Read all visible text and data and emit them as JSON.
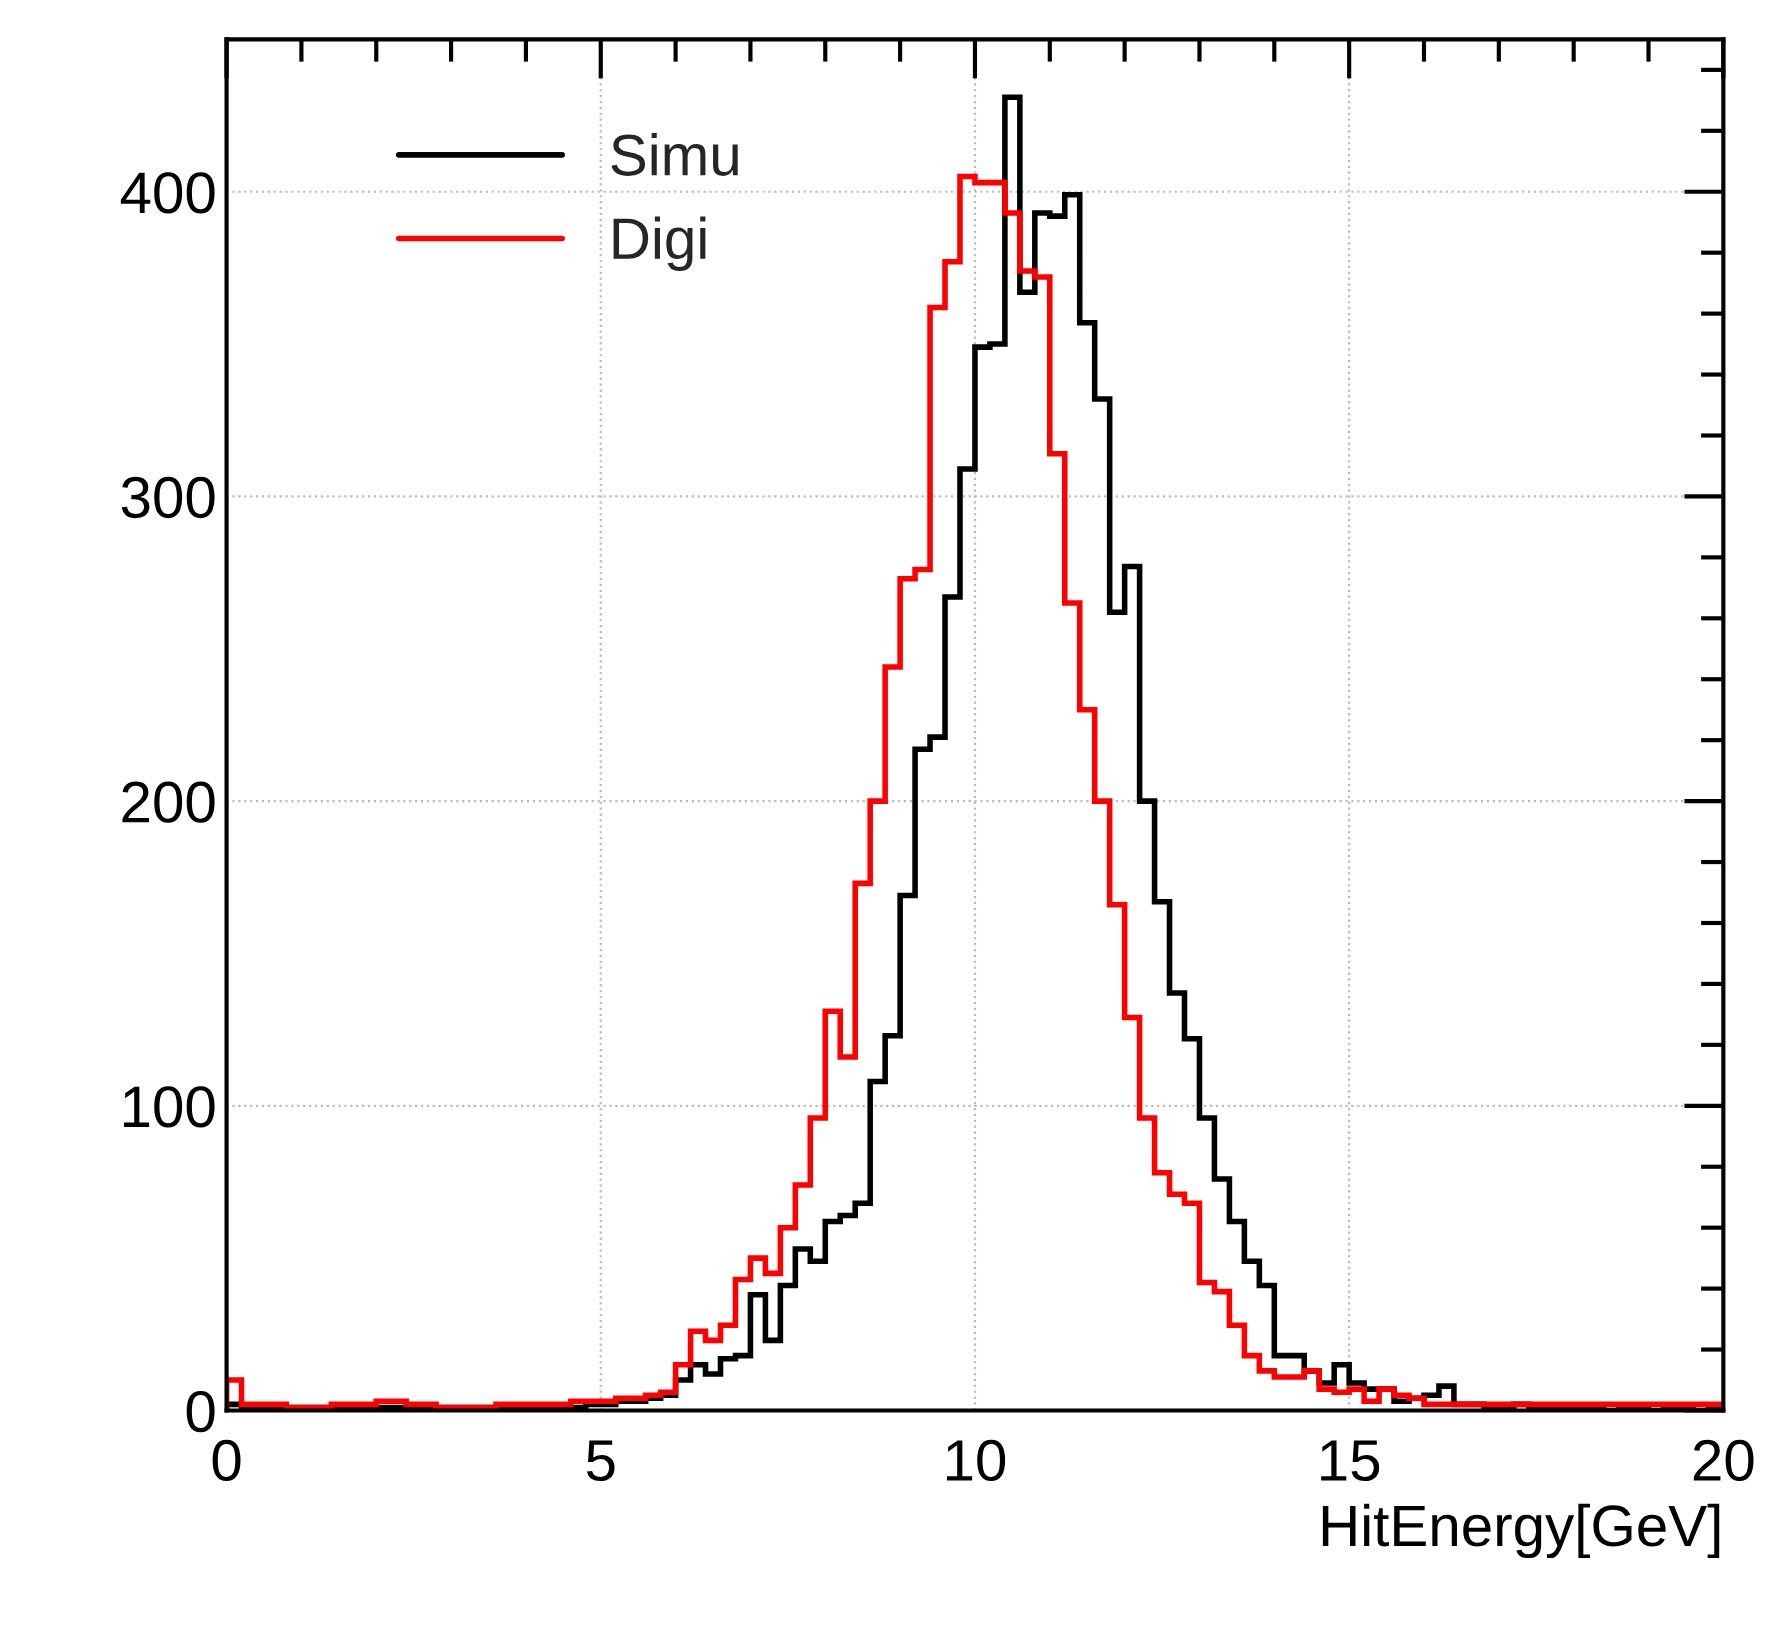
{
  "chart_data": {
    "type": "histogram",
    "xlabel": "HitEnergy[GeV]",
    "bins": [
      0,
      0.2,
      0.4,
      0.6,
      0.8,
      1,
      1.2,
      1.4,
      1.6,
      1.8,
      2,
      2.2,
      2.4,
      2.6,
      2.8,
      3,
      3.2,
      3.4,
      3.6,
      3.8,
      4,
      4.2,
      4.4,
      4.6,
      4.8,
      5,
      5.2,
      5.4,
      5.6,
      5.8,
      6,
      6.2,
      6.4,
      6.6,
      6.8,
      7,
      7.2,
      7.4,
      7.6,
      7.8,
      8,
      8.2,
      8.4,
      8.6,
      8.8,
      9,
      9.2,
      9.4,
      9.6,
      9.8,
      10,
      10.2,
      10.4,
      10.6,
      10.8,
      11,
      11.2,
      11.4,
      11.6,
      11.8,
      12,
      12.2,
      12.4,
      12.6,
      12.8,
      13,
      13.2,
      13.4,
      13.6,
      13.8,
      14,
      14.2,
      14.4,
      14.6,
      14.8,
      15,
      15.2,
      15.4,
      15.6,
      15.8,
      16,
      16.2,
      16.4,
      16.6,
      16.8,
      17,
      17.2,
      17.4,
      17.6,
      17.8,
      18,
      18.2,
      18.4,
      18.6,
      18.8,
      19,
      19.2,
      19.4,
      19.6,
      19.8,
      20
    ],
    "series": [
      {
        "name": "Simu",
        "color": "#000000",
        "values": [
          2,
          1,
          1,
          1,
          1,
          1,
          1,
          1,
          1,
          1,
          1,
          1,
          1,
          1,
          1,
          1,
          1,
          1,
          1,
          1,
          1,
          1,
          1,
          1,
          2,
          2,
          3,
          3,
          4,
          5,
          10,
          15,
          12,
          17,
          18,
          38,
          23,
          41,
          53,
          49,
          62,
          64,
          68,
          108,
          123,
          169,
          217,
          221,
          267,
          309,
          349,
          350,
          431,
          367,
          393,
          392,
          399,
          357,
          332,
          262,
          277,
          200,
          167,
          137,
          122,
          96,
          76,
          62,
          49,
          41,
          18,
          18,
          13,
          9,
          15,
          9,
          7,
          7,
          3,
          4,
          5,
          8,
          2,
          2,
          1,
          1,
          2,
          1,
          1,
          1,
          1,
          1,
          0,
          1,
          1,
          0,
          1,
          1,
          0,
          1
        ]
      },
      {
        "name": "Digi",
        "color": "#ff0000",
        "values": [
          10,
          2,
          2,
          2,
          1,
          1,
          1,
          2,
          2,
          2,
          3,
          3,
          2,
          2,
          1,
          1,
          1,
          1,
          2,
          2,
          2,
          2,
          2,
          3,
          3,
          3,
          4,
          4,
          5,
          6,
          15,
          26,
          23,
          28,
          43,
          50,
          45,
          60,
          74,
          96,
          131,
          116,
          173,
          200,
          244,
          273,
          276,
          362,
          377,
          405,
          403,
          403,
          393,
          374,
          372,
          314,
          265,
          230,
          200,
          166,
          129,
          96,
          78,
          71,
          68,
          42,
          39,
          28,
          18,
          13,
          11,
          11,
          13,
          7,
          6,
          7,
          3,
          7,
          5,
          4,
          2,
          2,
          2,
          2,
          2,
          2,
          2,
          2,
          2,
          2,
          2,
          2,
          2,
          2,
          2,
          2,
          2,
          2,
          2,
          2
        ]
      }
    ],
    "xlim": [
      0,
      20
    ],
    "ylim": [
      0,
      450
    ],
    "xticks": [
      0,
      5,
      10,
      15,
      20
    ],
    "yticks": [
      0,
      100,
      200,
      300,
      400
    ],
    "grid": true,
    "legend": "top left"
  }
}
